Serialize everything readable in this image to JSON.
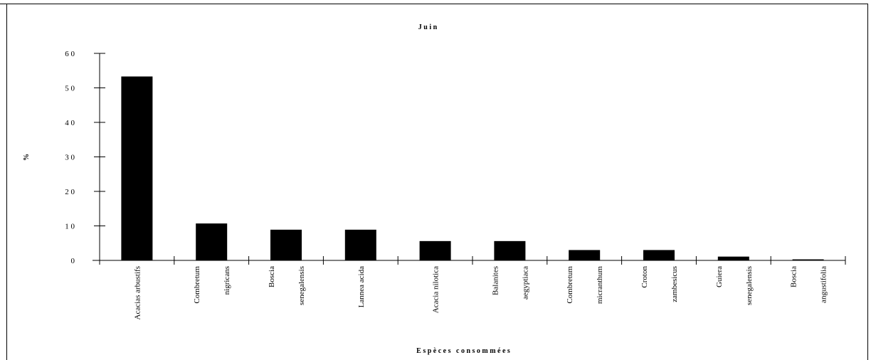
{
  "chart_data": {
    "type": "bar",
    "title": "J u i n",
    "xlabel": "E s p è c e s   c o n s o m m é e s",
    "ylabel": "%",
    "ylim": [
      0,
      60
    ],
    "yticks": [
      0,
      10,
      20,
      30,
      40,
      50,
      60
    ],
    "ytick_labels": [
      "0",
      "1 0",
      "2 0",
      "3 0",
      "4 0",
      "5 0",
      "6 0"
    ],
    "grid": false,
    "categories": [
      [
        "Acacias arbustifs"
      ],
      [
        "Combretum",
        "nigricans"
      ],
      [
        "Boscia",
        "senegalensis"
      ],
      [
        "Lannea acida"
      ],
      [
        "Acacia nilotica"
      ],
      [
        "Balanites",
        "aegyptiaca"
      ],
      [
        "Combretum",
        "micranthum"
      ],
      [
        "Croton",
        "zambesicus"
      ],
      [
        "Guiera",
        "senegalensis"
      ],
      [
        "Boscia",
        "angustifolia"
      ]
    ],
    "values": [
      53.3,
      10.7,
      8.9,
      8.9,
      5.6,
      5.6,
      3.0,
      3.0,
      1.1,
      0.3
    ],
    "bar_color": "#000000"
  }
}
